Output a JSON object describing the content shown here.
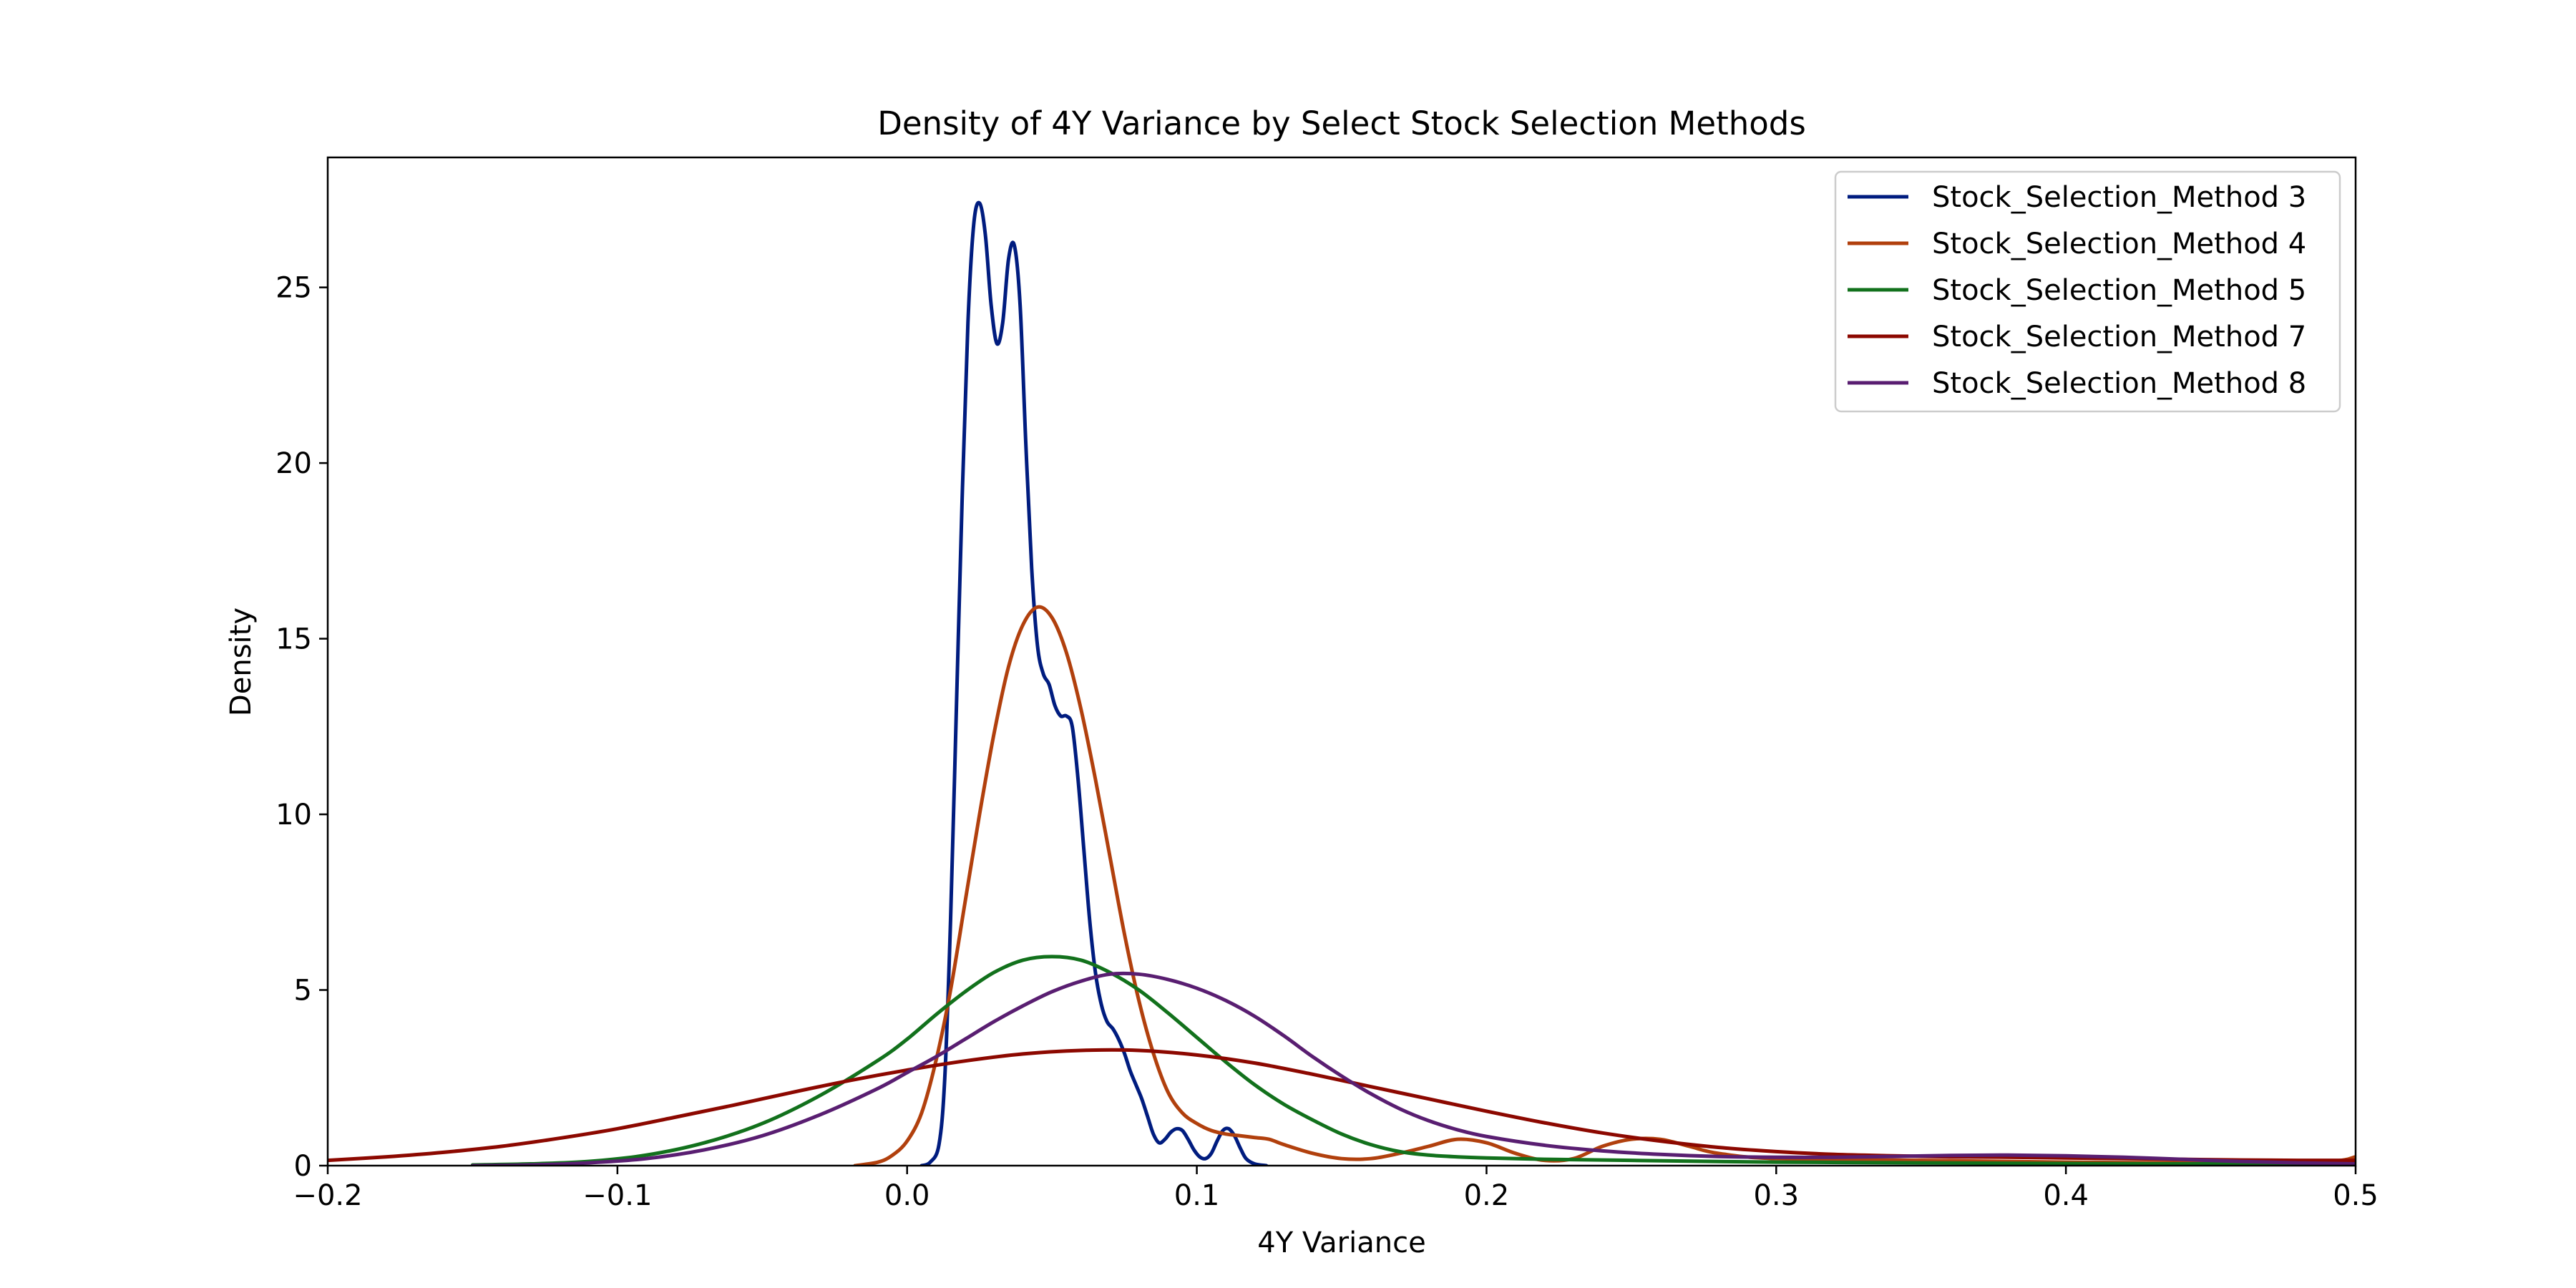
{
  "chart_data": {
    "type": "line",
    "title": "Density of 4Y Variance by Select Stock Selection Methods",
    "xlabel": "4Y Variance",
    "ylabel": "Density",
    "xlim": [
      -0.2,
      0.5
    ],
    "ylim": [
      0,
      28.7
    ],
    "xticks": [
      -0.2,
      -0.1,
      0.0,
      0.1,
      0.2,
      0.3,
      0.4,
      0.5
    ],
    "xtick_labels": [
      "−0.2",
      "−0.1",
      "0.0",
      "0.1",
      "0.2",
      "0.3",
      "0.4",
      "0.5"
    ],
    "yticks": [
      0,
      5,
      10,
      15,
      20,
      25
    ],
    "ytick_labels": [
      "0",
      "5",
      "10",
      "15",
      "20",
      "25"
    ],
    "grid": false,
    "legend_position": "top-right",
    "series": [
      {
        "name": "Stock_Selection_Method 3",
        "color": "#001c7f",
        "points": [
          [
            0.005,
            0
          ],
          [
            0.008,
            0.1
          ],
          [
            0.011,
            0.6
          ],
          [
            0.013,
            2.5
          ],
          [
            0.015,
            7
          ],
          [
            0.017,
            13
          ],
          [
            0.019,
            19
          ],
          [
            0.021,
            24
          ],
          [
            0.023,
            26.8
          ],
          [
            0.025,
            27.4
          ],
          [
            0.027,
            26.5
          ],
          [
            0.029,
            24.5
          ],
          [
            0.031,
            23.4
          ],
          [
            0.033,
            24
          ],
          [
            0.035,
            25.8
          ],
          [
            0.037,
            26.2
          ],
          [
            0.039,
            24.5
          ],
          [
            0.041,
            20.5
          ],
          [
            0.043,
            17
          ],
          [
            0.045,
            14.8
          ],
          [
            0.047,
            14
          ],
          [
            0.049,
            13.7
          ],
          [
            0.051,
            13.1
          ],
          [
            0.053,
            12.8
          ],
          [
            0.055,
            12.8
          ],
          [
            0.057,
            12.5
          ],
          [
            0.059,
            11
          ],
          [
            0.061,
            9
          ],
          [
            0.063,
            7
          ],
          [
            0.065,
            5.5
          ],
          [
            0.067,
            4.6
          ],
          [
            0.069,
            4.1
          ],
          [
            0.071,
            3.9
          ],
          [
            0.073,
            3.6
          ],
          [
            0.075,
            3.2
          ],
          [
            0.077,
            2.7
          ],
          [
            0.079,
            2.3
          ],
          [
            0.081,
            1.9
          ],
          [
            0.083,
            1.4
          ],
          [
            0.085,
            0.9
          ],
          [
            0.087,
            0.65
          ],
          [
            0.089,
            0.75
          ],
          [
            0.091,
            0.95
          ],
          [
            0.093,
            1.05
          ],
          [
            0.095,
            1
          ],
          [
            0.097,
            0.75
          ],
          [
            0.099,
            0.45
          ],
          [
            0.101,
            0.25
          ],
          [
            0.103,
            0.2
          ],
          [
            0.105,
            0.35
          ],
          [
            0.107,
            0.7
          ],
          [
            0.109,
            1
          ],
          [
            0.111,
            1.05
          ],
          [
            0.113,
            0.85
          ],
          [
            0.115,
            0.5
          ],
          [
            0.117,
            0.2
          ],
          [
            0.12,
            0.05
          ],
          [
            0.124,
            0
          ]
        ]
      },
      {
        "name": "Stock_Selection_Method 4",
        "color": "#b1400d",
        "points": [
          [
            -0.018,
            0
          ],
          [
            -0.01,
            0.1
          ],
          [
            -0.005,
            0.3
          ],
          [
            0,
            0.7
          ],
          [
            0.005,
            1.5
          ],
          [
            0.01,
            3
          ],
          [
            0.015,
            5
          ],
          [
            0.02,
            7.5
          ],
          [
            0.025,
            10
          ],
          [
            0.03,
            12.3
          ],
          [
            0.035,
            14.2
          ],
          [
            0.04,
            15.4
          ],
          [
            0.045,
            15.9
          ],
          [
            0.05,
            15.6
          ],
          [
            0.055,
            14.6
          ],
          [
            0.06,
            13
          ],
          [
            0.065,
            11
          ],
          [
            0.07,
            8.8
          ],
          [
            0.075,
            6.6
          ],
          [
            0.08,
            4.7
          ],
          [
            0.085,
            3.2
          ],
          [
            0.09,
            2.1
          ],
          [
            0.095,
            1.5
          ],
          [
            0.1,
            1.2
          ],
          [
            0.105,
            1
          ],
          [
            0.11,
            0.9
          ],
          [
            0.115,
            0.85
          ],
          [
            0.12,
            0.8
          ],
          [
            0.125,
            0.75
          ],
          [
            0.13,
            0.6
          ],
          [
            0.14,
            0.35
          ],
          [
            0.15,
            0.2
          ],
          [
            0.16,
            0.2
          ],
          [
            0.17,
            0.35
          ],
          [
            0.18,
            0.55
          ],
          [
            0.19,
            0.75
          ],
          [
            0.2,
            0.65
          ],
          [
            0.21,
            0.35
          ],
          [
            0.22,
            0.15
          ],
          [
            0.23,
            0.2
          ],
          [
            0.24,
            0.55
          ],
          [
            0.25,
            0.75
          ],
          [
            0.26,
            0.75
          ],
          [
            0.27,
            0.55
          ],
          [
            0.28,
            0.35
          ],
          [
            0.3,
            0.2
          ],
          [
            0.35,
            0.15
          ],
          [
            0.4,
            0.1
          ],
          [
            0.45,
            0.08
          ],
          [
            0.49,
            0.12
          ],
          [
            0.5,
            0.25
          ]
        ]
      },
      {
        "name": "Stock_Selection_Method 5",
        "color": "#12711c",
        "points": [
          [
            -0.15,
            0.02
          ],
          [
            -0.13,
            0.05
          ],
          [
            -0.11,
            0.12
          ],
          [
            -0.09,
            0.3
          ],
          [
            -0.07,
            0.65
          ],
          [
            -0.05,
            1.2
          ],
          [
            -0.03,
            2
          ],
          [
            -0.01,
            3
          ],
          [
            0,
            3.6
          ],
          [
            0.01,
            4.3
          ],
          [
            0.02,
            4.95
          ],
          [
            0.03,
            5.5
          ],
          [
            0.04,
            5.85
          ],
          [
            0.05,
            5.95
          ],
          [
            0.06,
            5.85
          ],
          [
            0.07,
            5.5
          ],
          [
            0.08,
            5
          ],
          [
            0.09,
            4.35
          ],
          [
            0.1,
            3.65
          ],
          [
            0.11,
            2.95
          ],
          [
            0.12,
            2.3
          ],
          [
            0.13,
            1.75
          ],
          [
            0.14,
            1.3
          ],
          [
            0.15,
            0.9
          ],
          [
            0.16,
            0.6
          ],
          [
            0.17,
            0.4
          ],
          [
            0.18,
            0.3
          ],
          [
            0.19,
            0.25
          ],
          [
            0.2,
            0.22
          ],
          [
            0.22,
            0.18
          ],
          [
            0.25,
            0.15
          ],
          [
            0.3,
            0.1
          ],
          [
            0.35,
            0.08
          ],
          [
            0.4,
            0.06
          ],
          [
            0.45,
            0.05
          ],
          [
            0.5,
            0.05
          ]
        ]
      },
      {
        "name": "Stock_Selection_Method 7",
        "color": "#8c0800",
        "points": [
          [
            -0.2,
            0.15
          ],
          [
            -0.18,
            0.25
          ],
          [
            -0.16,
            0.38
          ],
          [
            -0.14,
            0.55
          ],
          [
            -0.12,
            0.78
          ],
          [
            -0.1,
            1.05
          ],
          [
            -0.08,
            1.38
          ],
          [
            -0.06,
            1.72
          ],
          [
            -0.04,
            2.08
          ],
          [
            -0.02,
            2.42
          ],
          [
            0,
            2.72
          ],
          [
            0.02,
            2.98
          ],
          [
            0.04,
            3.18
          ],
          [
            0.06,
            3.28
          ],
          [
            0.08,
            3.28
          ],
          [
            0.1,
            3.15
          ],
          [
            0.12,
            2.92
          ],
          [
            0.14,
            2.6
          ],
          [
            0.16,
            2.25
          ],
          [
            0.18,
            1.9
          ],
          [
            0.2,
            1.55
          ],
          [
            0.22,
            1.22
          ],
          [
            0.24,
            0.93
          ],
          [
            0.26,
            0.7
          ],
          [
            0.28,
            0.52
          ],
          [
            0.3,
            0.4
          ],
          [
            0.32,
            0.32
          ],
          [
            0.34,
            0.28
          ],
          [
            0.36,
            0.25
          ],
          [
            0.38,
            0.24
          ],
          [
            0.4,
            0.22
          ],
          [
            0.42,
            0.2
          ],
          [
            0.44,
            0.18
          ],
          [
            0.46,
            0.16
          ],
          [
            0.48,
            0.15
          ],
          [
            0.5,
            0.15
          ]
        ]
      },
      {
        "name": "Stock_Selection_Method 8",
        "color": "#591e71",
        "points": [
          [
            -0.15,
            0
          ],
          [
            -0.13,
            0.02
          ],
          [
            -0.11,
            0.08
          ],
          [
            -0.09,
            0.2
          ],
          [
            -0.07,
            0.45
          ],
          [
            -0.05,
            0.85
          ],
          [
            -0.03,
            1.45
          ],
          [
            -0.01,
            2.2
          ],
          [
            0,
            2.65
          ],
          [
            0.01,
            3.1
          ],
          [
            0.02,
            3.6
          ],
          [
            0.03,
            4.1
          ],
          [
            0.04,
            4.55
          ],
          [
            0.05,
            4.95
          ],
          [
            0.06,
            5.25
          ],
          [
            0.07,
            5.45
          ],
          [
            0.08,
            5.45
          ],
          [
            0.09,
            5.3
          ],
          [
            0.1,
            5.05
          ],
          [
            0.11,
            4.7
          ],
          [
            0.12,
            4.25
          ],
          [
            0.13,
            3.7
          ],
          [
            0.14,
            3.1
          ],
          [
            0.15,
            2.55
          ],
          [
            0.16,
            2.05
          ],
          [
            0.17,
            1.62
          ],
          [
            0.18,
            1.28
          ],
          [
            0.19,
            1.02
          ],
          [
            0.2,
            0.83
          ],
          [
            0.22,
            0.58
          ],
          [
            0.24,
            0.42
          ],
          [
            0.26,
            0.32
          ],
          [
            0.28,
            0.26
          ],
          [
            0.3,
            0.24
          ],
          [
            0.32,
            0.24
          ],
          [
            0.34,
            0.26
          ],
          [
            0.36,
            0.29
          ],
          [
            0.38,
            0.3
          ],
          [
            0.4,
            0.28
          ],
          [
            0.42,
            0.24
          ],
          [
            0.44,
            0.18
          ],
          [
            0.46,
            0.12
          ],
          [
            0.48,
            0.08
          ],
          [
            0.5,
            0.05
          ]
        ]
      }
    ]
  }
}
